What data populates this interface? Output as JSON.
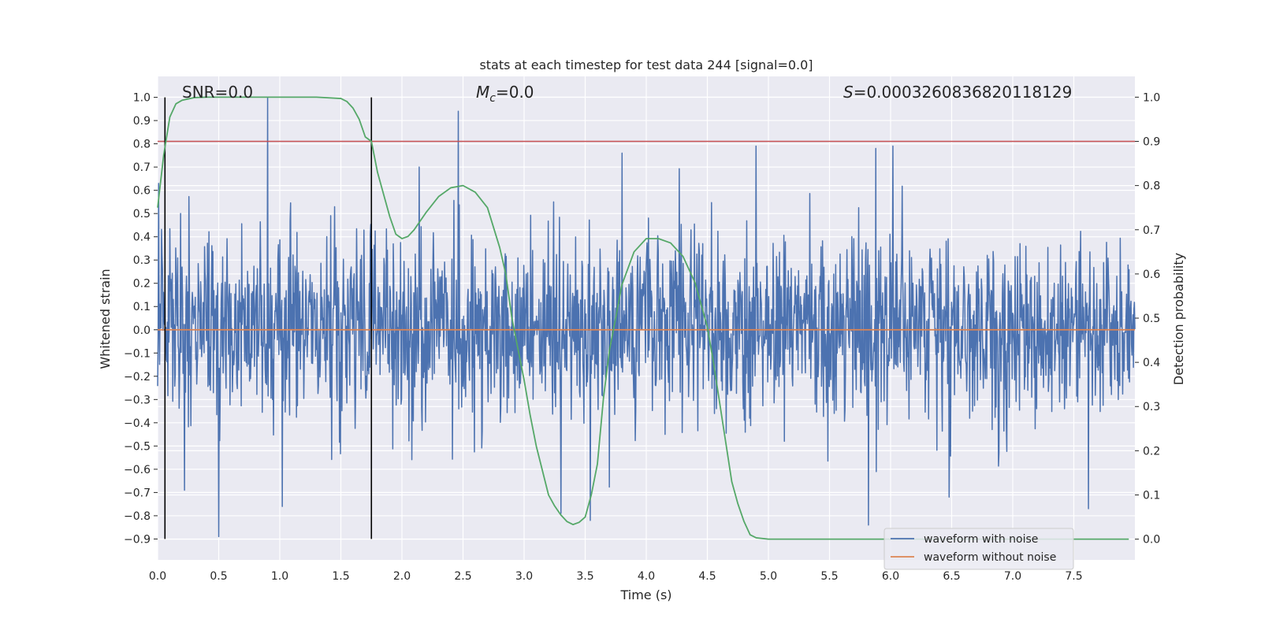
{
  "chart_data": {
    "type": "line",
    "title": "stats at each timestep for test data 244 [signal=0.0]",
    "xlabel": "Time (s)",
    "ylabel": "Whitened strain",
    "ylabel_right": "Detection probability",
    "xlim": [
      0.0,
      8.0
    ],
    "ylim": [
      -0.99,
      1.09
    ],
    "ylim_right": [
      -0.047,
      1.047
    ],
    "xticks": [
      "0.0",
      "0.5",
      "1.0",
      "1.5",
      "2.0",
      "2.5",
      "3.0",
      "3.5",
      "4.0",
      "4.5",
      "5.0",
      "5.5",
      "6.0",
      "6.5",
      "7.0",
      "7.5"
    ],
    "yticks": [
      "1.0",
      "0.9",
      "0.8",
      "0.7",
      "0.6",
      "0.5",
      "0.4",
      "0.3",
      "0.2",
      "0.1",
      "0.0",
      "−0.1",
      "−0.2",
      "−0.3",
      "−0.4",
      "−0.5",
      "−0.6",
      "−0.7",
      "−0.8",
      "−0.9"
    ],
    "yticks_right": [
      "1.0",
      "0.9",
      "0.8",
      "0.7",
      "0.6",
      "0.5",
      "0.4",
      "0.3",
      "0.2",
      "0.1",
      "0.0"
    ],
    "annotations": {
      "snr_prefix": "SNR=",
      "snr_value": "0.0",
      "mc_symbol": "M",
      "mc_subscript": "c",
      "mc_value": "=0.0",
      "s_symbol": "S",
      "s_value": "=0.0003260836820118129"
    },
    "legend": {
      "location": "lower-right",
      "entries": [
        {
          "label": "waveform with noise",
          "color": "#4c72b0"
        },
        {
          "label": "waveform without noise",
          "color": "#dd8452"
        }
      ]
    },
    "threshold_right": 0.9,
    "vertical_markers_x": [
      0.06,
      1.75
    ],
    "noise": {
      "color": "#4c72b0",
      "typical_envelope": 0.35,
      "spikes": [
        {
          "x": 0.9,
          "y": 1.0
        },
        {
          "x": 2.46,
          "y": 0.94
        },
        {
          "x": 5.88,
          "y": 0.78
        },
        {
          "x": 6.02,
          "y": 0.79
        },
        {
          "x": 2.14,
          "y": 0.7
        },
        {
          "x": 4.9,
          "y": 0.79
        },
        {
          "x": 3.8,
          "y": 0.76
        },
        {
          "x": 5.82,
          "y": -0.84
        },
        {
          "x": 0.5,
          "y": -0.89
        },
        {
          "x": 3.54,
          "y": -0.82
        },
        {
          "x": 1.02,
          "y": -0.76
        },
        {
          "x": 7.62,
          "y": -0.77
        },
        {
          "x": 6.48,
          "y": -0.72
        },
        {
          "x": 0.22,
          "y": -0.69
        },
        {
          "x": 3.3,
          "y": -0.79
        }
      ]
    },
    "waveform_without_noise": {
      "color": "#dd8452",
      "value": 0.0
    },
    "detection_probability": {
      "color": "#55a868",
      "x": [
        0.0,
        0.05,
        0.1,
        0.15,
        0.2,
        0.3,
        0.4,
        0.5,
        0.7,
        1.0,
        1.3,
        1.5,
        1.55,
        1.6,
        1.65,
        1.7,
        1.75,
        1.8,
        1.85,
        1.9,
        1.95,
        2.0,
        2.05,
        2.1,
        2.2,
        2.3,
        2.4,
        2.5,
        2.6,
        2.7,
        2.8,
        2.85,
        2.9,
        2.95,
        3.0,
        3.05,
        3.1,
        3.2,
        3.25,
        3.3,
        3.35,
        3.4,
        3.45,
        3.5,
        3.55,
        3.6,
        3.65,
        3.7,
        3.75,
        3.8,
        3.9,
        4.0,
        4.1,
        4.2,
        4.3,
        4.4,
        4.5,
        4.55,
        4.6,
        4.65,
        4.7,
        4.75,
        4.8,
        4.85,
        4.9,
        5.0,
        5.5,
        6.0,
        7.0,
        7.95
      ],
      "y": [
        0.75,
        0.87,
        0.955,
        0.985,
        0.993,
        0.999,
        1.0,
        1.0,
        1.0,
        1.0,
        1.0,
        0.997,
        0.99,
        0.975,
        0.95,
        0.91,
        0.9,
        0.83,
        0.78,
        0.73,
        0.69,
        0.68,
        0.685,
        0.7,
        0.74,
        0.775,
        0.795,
        0.8,
        0.785,
        0.75,
        0.66,
        0.6,
        0.5,
        0.43,
        0.36,
        0.28,
        0.21,
        0.1,
        0.075,
        0.055,
        0.04,
        0.033,
        0.038,
        0.05,
        0.1,
        0.17,
        0.32,
        0.43,
        0.5,
        0.575,
        0.65,
        0.68,
        0.68,
        0.67,
        0.64,
        0.58,
        0.48,
        0.4,
        0.31,
        0.22,
        0.13,
        0.08,
        0.04,
        0.01,
        0.003,
        0.0,
        0.0,
        0.0,
        0.0,
        0.0
      ]
    }
  }
}
